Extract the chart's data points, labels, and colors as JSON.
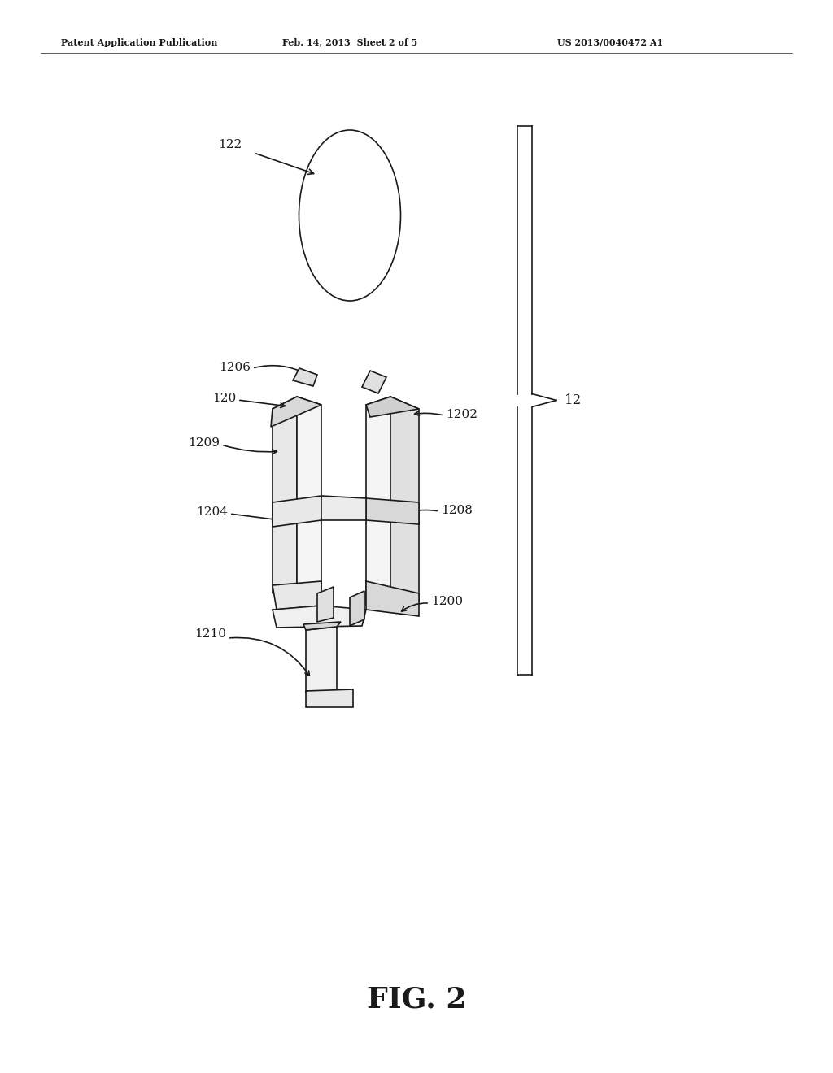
{
  "header_left": "Patent Application Publication",
  "header_center": "Feb. 14, 2013  Sheet 2 of 5",
  "header_right": "US 2013/0040472 A1",
  "figure_label": "FIG. 2",
  "bg_color": "#ffffff",
  "line_color": "#1a1a1a",
  "lw": 1.2
}
